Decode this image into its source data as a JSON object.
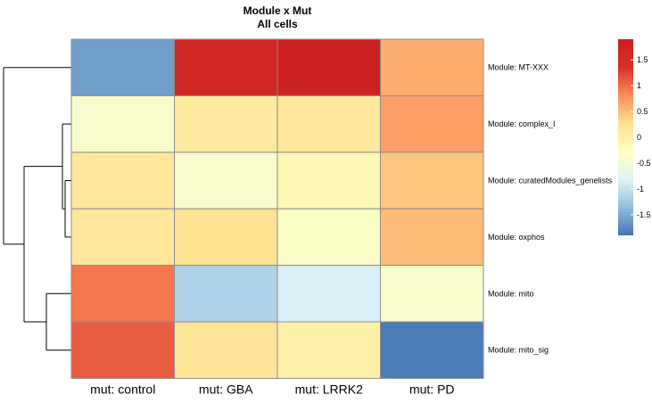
{
  "chart_data": {
    "type": "heatmap",
    "title": "Module x Mut",
    "subtitle": "All cells",
    "rows": [
      "Module:  MT-XXX",
      "Module:  complex_I",
      "Module:  curatedModules_genelists",
      "Module:  oxphos",
      "Module:  mito",
      "Module:  mito_sig"
    ],
    "columns": [
      "mut:  control",
      "mut:  GBA",
      "mut:  LRRK2",
      "mut:  PD"
    ],
    "values": [
      [
        -1.6,
        1.7,
        1.85,
        0.6
      ],
      [
        -0.4,
        0.1,
        0.15,
        0.7
      ],
      [
        0.15,
        -0.4,
        -0.15,
        0.45
      ],
      [
        0.15,
        0.25,
        -0.35,
        0.5
      ],
      [
        0.95,
        -1.15,
        -0.85,
        -0.4
      ],
      [
        1.1,
        0.2,
        0.0,
        -1.85
      ]
    ],
    "color_range": [
      -1.9,
      1.9
    ],
    "legend": {
      "ticks": [
        1.5,
        1,
        0.5,
        0,
        -0.5,
        -1,
        -1.5
      ],
      "tick_labels": [
        "1.5",
        "1",
        "0.5",
        "0",
        "-0.5",
        "-1",
        "-1.5"
      ],
      "placement": "top-right"
    },
    "colors": [
      "#4575b4",
      "#91bfdb",
      "#e0f3f8",
      "#ffffbf",
      "#fee090",
      "#fc8d59",
      "#d73027",
      "#cc1e21"
    ],
    "grid_color": "#8c8c8c",
    "row_dendrogram": true
  }
}
